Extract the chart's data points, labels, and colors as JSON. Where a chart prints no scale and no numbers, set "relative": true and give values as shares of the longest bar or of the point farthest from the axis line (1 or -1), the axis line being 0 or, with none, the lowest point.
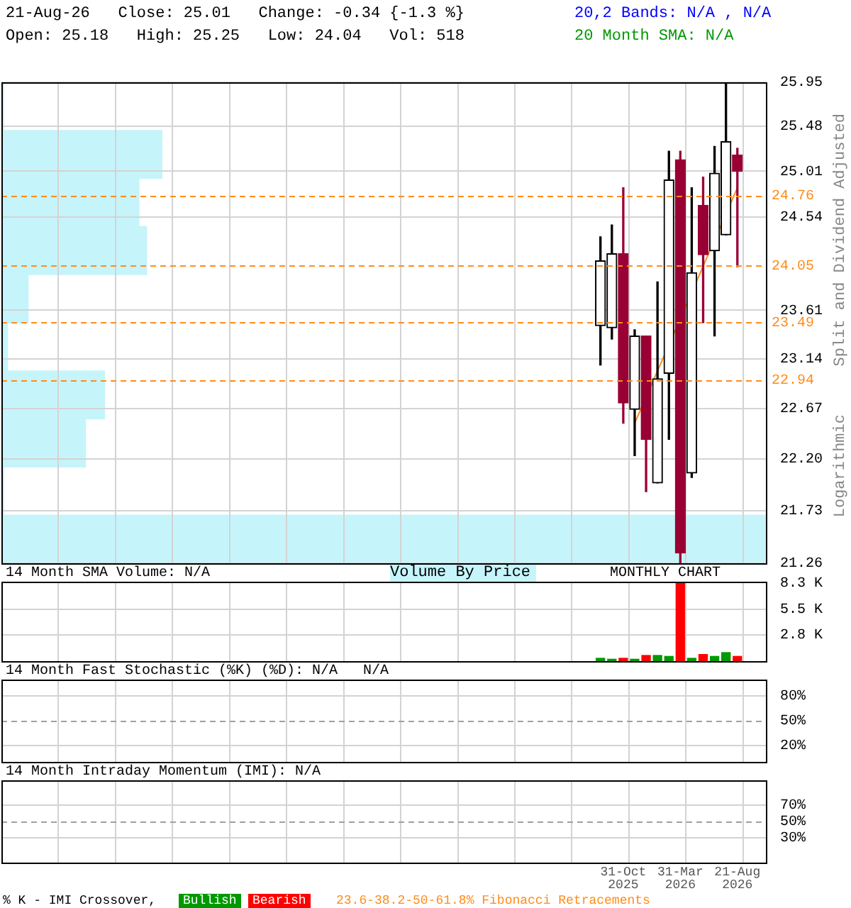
{
  "chart_data": [
    {
      "type": "candlestick",
      "title": "21-Aug-26   Close: 25.01   Change: -0.34 {-1.3 %}",
      "subtitle": "Open: 25.18   High: 25.25   Low: 24.04   Vol: 518",
      "ylabel": "Split and Dividend Adjusted",
      "annotations": [
        "20,2 Bands: N/A , N/A",
        "20 Month SMA: N/A",
        "Logarithmic"
      ],
      "categories": [
        null,
        null,
        null,
        null,
        null,
        null,
        null,
        null,
        null,
        null,
        null,
        null,
        null,
        null,
        null,
        null,
        null,
        null,
        null,
        null,
        null,
        null,
        null,
        null,
        null,
        null,
        null,
        null,
        null,
        null,
        null,
        null,
        null,
        null,
        null,
        null,
        null,
        null,
        null,
        null,
        null,
        null,
        null,
        null,
        null,
        null,
        null,
        null,
        null,
        null,
        null,
        null,
        null,
        null,
        null,
        null,
        null,
        null,
        null,
        null,
        null,
        null,
        null,
        null,
        null,
        null,
        null
      ],
      "ohlc": [
        null,
        null,
        null,
        null,
        null,
        null,
        null,
        null,
        null,
        null,
        null,
        null,
        null,
        null,
        null,
        null,
        null,
        null,
        null,
        null,
        null,
        null,
        null,
        null,
        null,
        null,
        null,
        null,
        null,
        null,
        null,
        null,
        null,
        null,
        null,
        null,
        null,
        null,
        null,
        null,
        null,
        null,
        null,
        null,
        null,
        null,
        null,
        null,
        null,
        null,
        null,
        null,
        [
          23.46,
          24.34,
          23.08,
          24.1
        ],
        [
          23.44,
          24.46,
          23.33,
          24.17
        ],
        [
          24.17,
          24.84,
          22.53,
          22.72
        ],
        [
          22.66,
          23.42,
          22.23,
          23.36
        ],
        [
          23.36,
          23.36,
          21.9,
          22.38
        ],
        [
          21.98,
          23.89,
          21.98,
          22.95
        ],
        [
          23.0,
          25.22,
          22.38,
          24.92
        ],
        [
          25.13,
          25.22,
          21.26,
          21.35
        ],
        [
          22.07,
          24.84,
          22.03,
          23.98
        ],
        [
          24.66,
          24.95,
          23.49,
          24.16
        ],
        [
          24.2,
          25.27,
          23.36,
          24.99
        ],
        [
          24.36,
          25.95,
          24.36,
          25.32
        ],
        [
          25.18,
          25.25,
          24.04,
          25.01
        ],
        null,
        null
      ],
      "colors": [
        null,
        null,
        null,
        null,
        null,
        null,
        null,
        null,
        null,
        null,
        null,
        null,
        null,
        null,
        null,
        null,
        null,
        null,
        null,
        null,
        null,
        null,
        null,
        null,
        null,
        null,
        null,
        null,
        null,
        null,
        null,
        null,
        null,
        null,
        null,
        null,
        null,
        null,
        null,
        null,
        null,
        null,
        null,
        null,
        null,
        null,
        null,
        null,
        null,
        null,
        null,
        null,
        "#000000",
        "#000000",
        "#990033",
        "#000000",
        "#990033",
        "#000000",
        "#000000",
        "#990033",
        "#000000",
        "#990033",
        "#000000",
        "#000000",
        "#990033",
        null,
        null
      ],
      "series": [
        {
          "type": "line",
          "color": "#ff8c1a",
          "values": [
            null,
            null,
            null,
            null,
            null,
            null,
            null,
            null,
            null,
            null,
            null,
            null,
            null,
            null,
            null,
            null,
            null,
            null,
            null,
            null,
            null,
            null,
            null,
            null,
            null,
            null,
            null,
            null,
            null,
            null,
            null,
            null,
            null,
            null,
            null,
            null,
            null,
            null,
            null,
            null,
            null,
            null,
            null,
            null,
            null,
            null,
            null,
            null,
            null,
            null,
            null,
            null,
            null,
            null,
            null,
            22.53,
            null,
            null,
            null,
            null,
            null,
            null,
            null,
            null,
            24.84,
            null,
            null
          ]
        }
      ],
      "ref_lines": [
        {
          "axis": "y",
          "value": 24.76,
          "label": "24.76",
          "color": "#ff8c1a",
          "line_style": "dashed"
        },
        {
          "axis": "y",
          "value": 24.05,
          "label": "24.05",
          "color": "#ff8c1a",
          "line_style": "dashed"
        },
        {
          "axis": "y",
          "value": 23.49,
          "label": "23.49",
          "color": "#ff8c1a",
          "line_style": "dashed"
        },
        {
          "axis": "y",
          "value": 22.94,
          "label": "22.94",
          "color": "#ff8c1a",
          "line_style": "dashed"
        }
      ],
      "log": true,
      "ylim": [
        21.26,
        25.95
      ],
      "yticks": [
        21.26,
        21.73,
        {
          "value": 22.2,
          "label": "22.20"
        },
        22.67,
        23.14,
        23.61,
        24.54,
        25.01,
        25.48,
        25.95
      ],
      "grid": true,
      "tick_labels": "y"
    },
    {
      "type": "bar",
      "orientation": "horizontal",
      "relative": true,
      "title": "Volume By Price",
      "color": "#c6f4fb",
      "categories": [
        null,
        null,
        null,
        null,
        null,
        null,
        null,
        null,
        null,
        null
      ],
      "values": [
        0.003,
        0.21,
        0.18,
        0.19,
        0.035,
        0.008,
        0.135,
        0.11,
        0.003,
        1
      ]
    },
    {
      "type": "bar",
      "title": "14 Month SMA Volume: N/A",
      "annotations": [
        "MONTHLY CHART"
      ],
      "categories": [
        null,
        null,
        null,
        null,
        null,
        null,
        null,
        null,
        null,
        null,
        null,
        null,
        null,
        null,
        null,
        null,
        null,
        null,
        null,
        null,
        null,
        null,
        null,
        null,
        null,
        null,
        null,
        null,
        null,
        null,
        null,
        null,
        null,
        null,
        null,
        null,
        null,
        null,
        null,
        null,
        null,
        null,
        null,
        null,
        null,
        null,
        null,
        null,
        null,
        null,
        null,
        null,
        null,
        null,
        null,
        null,
        null,
        null,
        null,
        null,
        null,
        null,
        null,
        null,
        null,
        null,
        null
      ],
      "values": [
        null,
        null,
        null,
        null,
        null,
        null,
        null,
        null,
        null,
        null,
        null,
        null,
        null,
        null,
        null,
        null,
        null,
        null,
        null,
        null,
        null,
        null,
        null,
        null,
        null,
        null,
        null,
        null,
        null,
        null,
        null,
        null,
        null,
        null,
        null,
        null,
        null,
        null,
        null,
        null,
        null,
        null,
        null,
        null,
        null,
        null,
        null,
        null,
        null,
        null,
        null,
        null,
        0.3,
        0.2,
        0.3,
        0.2,
        0.6,
        0.6,
        0.5,
        8.3,
        0.3,
        0.7,
        0.5,
        0.9,
        0.5,
        null,
        null
      ],
      "colors": [
        null,
        null,
        null,
        null,
        null,
        null,
        null,
        null,
        null,
        null,
        null,
        null,
        null,
        null,
        null,
        null,
        null,
        null,
        null,
        null,
        null,
        null,
        null,
        null,
        null,
        null,
        null,
        null,
        null,
        null,
        null,
        null,
        null,
        null,
        null,
        null,
        null,
        null,
        null,
        null,
        null,
        null,
        null,
        null,
        null,
        null,
        null,
        null,
        null,
        null,
        null,
        null,
        "#009900",
        "#009900",
        "#ff0000",
        "#009900",
        "#ff0000",
        "#009900",
        "#009900",
        "#ff0000",
        "#009900",
        "#ff0000",
        "#009900",
        "#009900",
        "#ff0000",
        null,
        null
      ],
      "ylim": [
        0,
        8.4
      ],
      "yticks": [
        {
          "value": 2.8,
          "label": "2.8 K"
        },
        {
          "value": 5.5,
          "label": "5.5 K"
        },
        {
          "value": 8.3,
          "label": "8.3 K"
        }
      ],
      "grid": true,
      "tick_labels": "y"
    },
    {
      "type": "line",
      "title": "14 Month Fast Stochastic (%K) (%D): N/A   N/A",
      "categories": [
        null,
        null,
        null,
        null,
        null,
        null,
        null,
        null,
        null,
        null,
        null,
        null,
        null,
        null,
        null,
        null,
        null,
        null,
        null,
        null,
        null,
        null,
        null,
        null,
        null,
        null,
        null,
        null,
        null,
        null,
        null,
        null,
        null,
        null,
        null,
        null,
        null,
        null,
        null,
        null,
        null,
        null,
        null,
        null,
        null,
        null,
        null,
        null,
        null,
        null,
        null,
        null,
        null,
        null,
        null,
        null,
        null,
        null,
        null,
        null,
        null,
        null,
        null,
        null,
        null,
        null,
        null
      ],
      "ylim": [
        0,
        100
      ],
      "yticks": [
        {
          "value": 20,
          "label": "20%"
        },
        {
          "value": 50,
          "label": "50%"
        },
        {
          "value": 80,
          "label": "80%"
        }
      ],
      "ref_lines": [
        {
          "axis": "y",
          "value": 50,
          "color": "#a0a0a0",
          "line_style": "dashed"
        }
      ],
      "grid": true,
      "tick_labels": "y"
    },
    {
      "type": "line",
      "title": "14 Month Intraday Momentum (IMI): N/A",
      "annotations": [
        "% K - IMI Crossover,",
        "Bullish",
        "Bearish",
        "23.6-38.2-50-61.8% Fibonacci Retracements"
      ],
      "categories": [
        null,
        null,
        null,
        null,
        null,
        null,
        null,
        null,
        null,
        null,
        null,
        null,
        null,
        null,
        null,
        null,
        null,
        null,
        null,
        null,
        null,
        null,
        null,
        null,
        null,
        null,
        null,
        null,
        null,
        null,
        null,
        null,
        null,
        null,
        null,
        null,
        null,
        null,
        null,
        null,
        null,
        null,
        null,
        null,
        null,
        null,
        null,
        null,
        null,
        null,
        null,
        null,
        null,
        null,
        "31-Oct 2025",
        null,
        null,
        null,
        null,
        "31-Mar 2026",
        null,
        null,
        null,
        null,
        "21-Aug 2026",
        null,
        null
      ],
      "ylim": [
        0,
        100
      ],
      "yticks": [
        {
          "value": 30,
          "label": "30%"
        },
        {
          "value": 50,
          "label": "50%"
        },
        {
          "value": 70,
          "label": "70%"
        }
      ],
      "ref_lines": [
        {
          "axis": "y",
          "value": 50,
          "color": "#a0a0a0",
          "line_style": "dashed"
        }
      ],
      "grid": true
    }
  ]
}
